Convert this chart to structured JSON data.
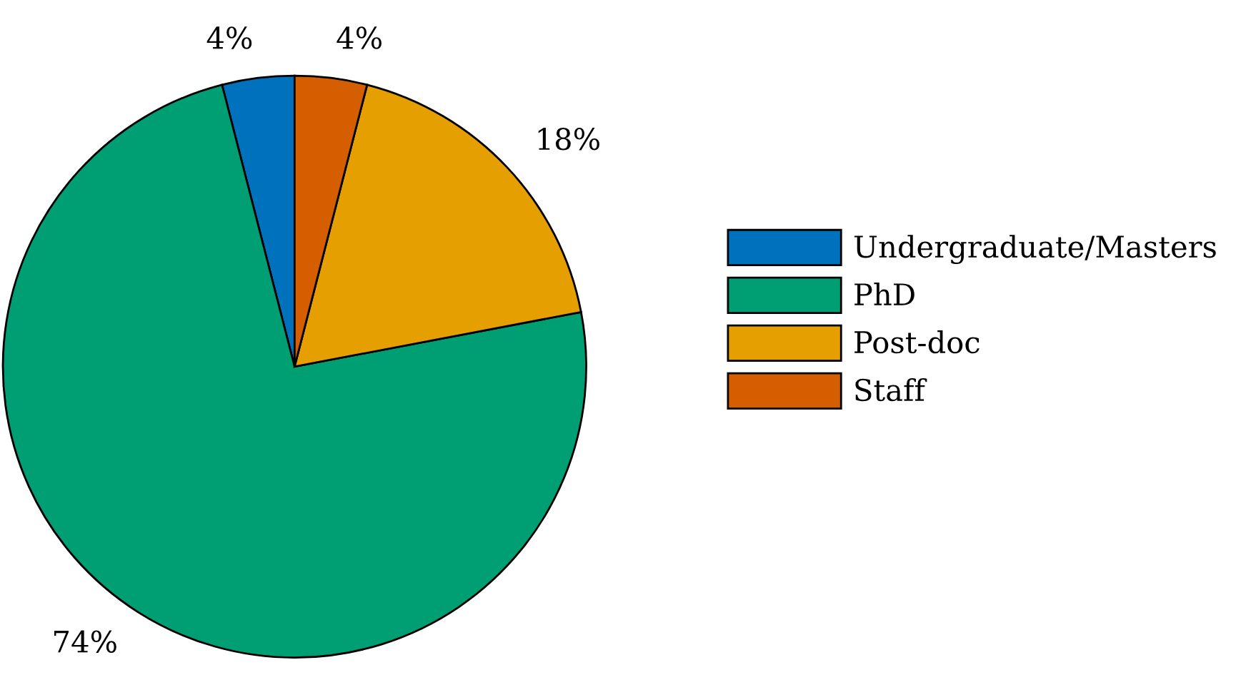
{
  "chart_data": {
    "type": "pie",
    "categories": [
      "Undergraduate/Masters",
      "PhD",
      "Post-doc",
      "Staff"
    ],
    "values": [
      4,
      74,
      18,
      4
    ],
    "colors": [
      "#0072bd",
      "#009e73",
      "#e69f00",
      "#d55e00"
    ],
    "value_labels": [
      "4%",
      "74%",
      "18%",
      "4%"
    ],
    "legend": "right"
  }
}
